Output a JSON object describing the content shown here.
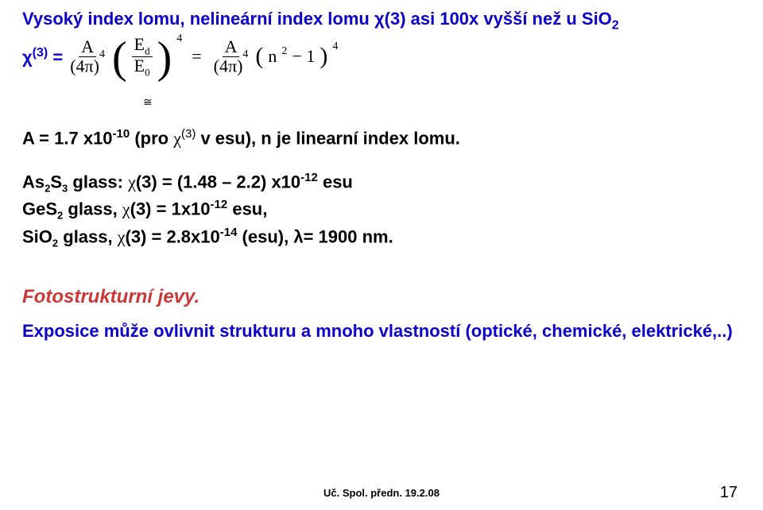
{
  "title_prefix": "Vysoký index lomu, nelineární index lomu ",
  "title_chi": "χ",
  "title_chi_exp": "(3) asi 100x vyšší než u SiO",
  "title_sio2_sub": "2",
  "chi3_label": "χ",
  "chi3_sup": "(3)",
  "chi3_eq": " = ",
  "frac1_num": "A",
  "frac1_den_a": "(4π)",
  "frac1_den_sup": "4",
  "paren_frac_num": "E",
  "paren_frac_num_sub": "d",
  "paren_frac_den": "E",
  "paren_frac_den_sub": "0",
  "outer_sup": "4",
  "mid_eq": "=",
  "frac2_num": "A",
  "frac2_den_a": "(4π)",
  "frac2_den_sup": "4",
  "n2": "n",
  "n2_sup": "2",
  "minus1": " − 1",
  "outer_sup2": "4",
  "approx": "≅",
  "lineA_a": "A = 1.7 x10",
  "lineA_sup": "-10",
  "lineA_b": " (pro ",
  "lineA_chi": "χ",
  "lineA_chi_sup": "(3)",
  "lineA_c": " v esu), ",
  "lineA_n": "n",
  "lineA_d": " je linearní index lomu.",
  "as2s3_a": "As",
  "as2s3_s2": "2",
  "as2s3_b": "S",
  "as2s3_s3": "3",
  "as2s3_c": " glass: ",
  "as2s3_chi": "χ",
  "as2s3_cp": "(3) = (1.48 – 2.2) x10",
  "as2s3_sup": "-12",
  "as2s3_esu": " esu",
  "ges2_a": "GeS",
  "ges2_s2": "2",
  "ges2_b": " glass, ",
  "ges2_chi": "χ",
  "ges2_cp": "(3) = 1x10",
  "ges2_sup": "-12",
  "ges2_esu": " esu,",
  "sio2_a": "SiO",
  "sio2_s2": "2",
  "sio2_b": " glass, ",
  "sio2_chi": "χ",
  "sio2_cp": "(3) = 2.8x10",
  "sio2_sup": "-14",
  "sio2_tail": " (esu), λ= 1900 nm.",
  "foto": "Fotostrukturní jevy.",
  "expo": "Exposice může ovlivnit strukturu a mnoho vlastností (optické, chemické, elektrické,..)",
  "footer": "Uč. Spol. předn. 19.2.08",
  "page": "17"
}
